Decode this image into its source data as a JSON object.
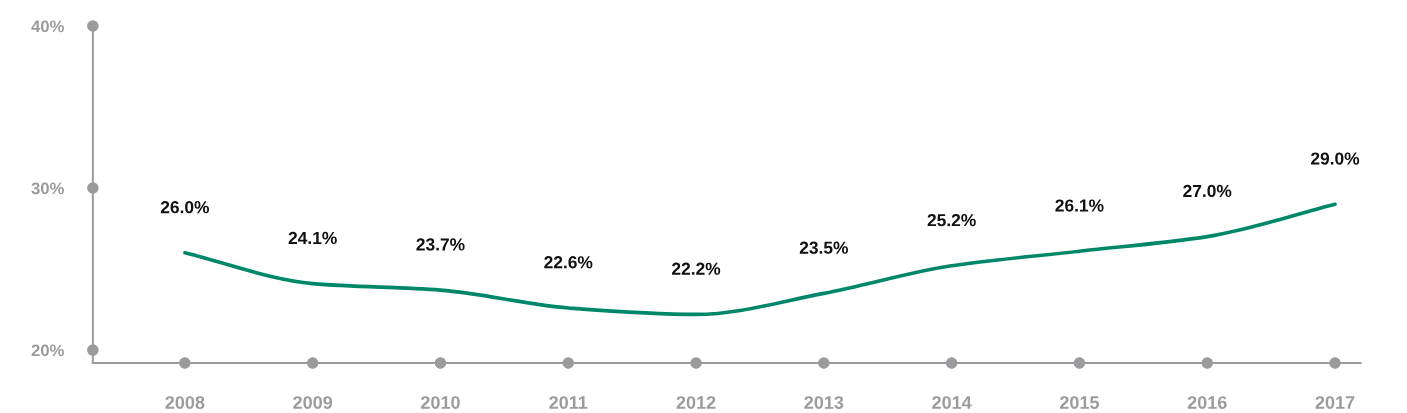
{
  "chart_data": {
    "type": "line",
    "categories": [
      "2008",
      "2009",
      "2010",
      "2011",
      "2012",
      "2013",
      "2014",
      "2015",
      "2016",
      "2017"
    ],
    "series": [
      {
        "color": "#00876a",
        "values": [
          26.0,
          24.1,
          23.7,
          22.6,
          22.2,
          23.5,
          25.2,
          26.1,
          27.0,
          29.0
        ],
        "value_labels": [
          "26.0%",
          "24.1%",
          "23.7%",
          "22.6%",
          "22.2%",
          "23.5%",
          "25.2%",
          "26.1%",
          "27.0%",
          "29.0%"
        ]
      }
    ],
    "ylim": [
      19.2,
      40
    ],
    "yticks": [
      {
        "value": 20,
        "label": "20%"
      },
      {
        "value": 30,
        "label": "30%"
      },
      {
        "value": 40,
        "label": "40%"
      }
    ],
    "line_style": "solid"
  }
}
